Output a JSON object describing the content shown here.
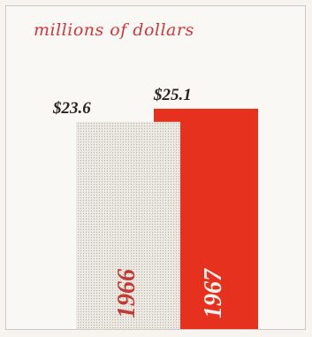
{
  "chart_data": {
    "type": "bar",
    "title": "millions of dollars",
    "categories": [
      "1966",
      "1967"
    ],
    "values": [
      23.6,
      25.1
    ],
    "value_labels": [
      "$23.6",
      "$25.1"
    ],
    "xlabel": "",
    "ylabel": "",
    "ylim": [
      0,
      26.2
    ],
    "grid": false,
    "legend": "none",
    "colors": {
      "bar_1966": "#e9e4de",
      "bar_1967": "#e7311f",
      "label_1966": "#c23a34",
      "label_1967": "#f7f2ee",
      "title": "#d7343a",
      "frame": "#cfc8c4"
    }
  }
}
